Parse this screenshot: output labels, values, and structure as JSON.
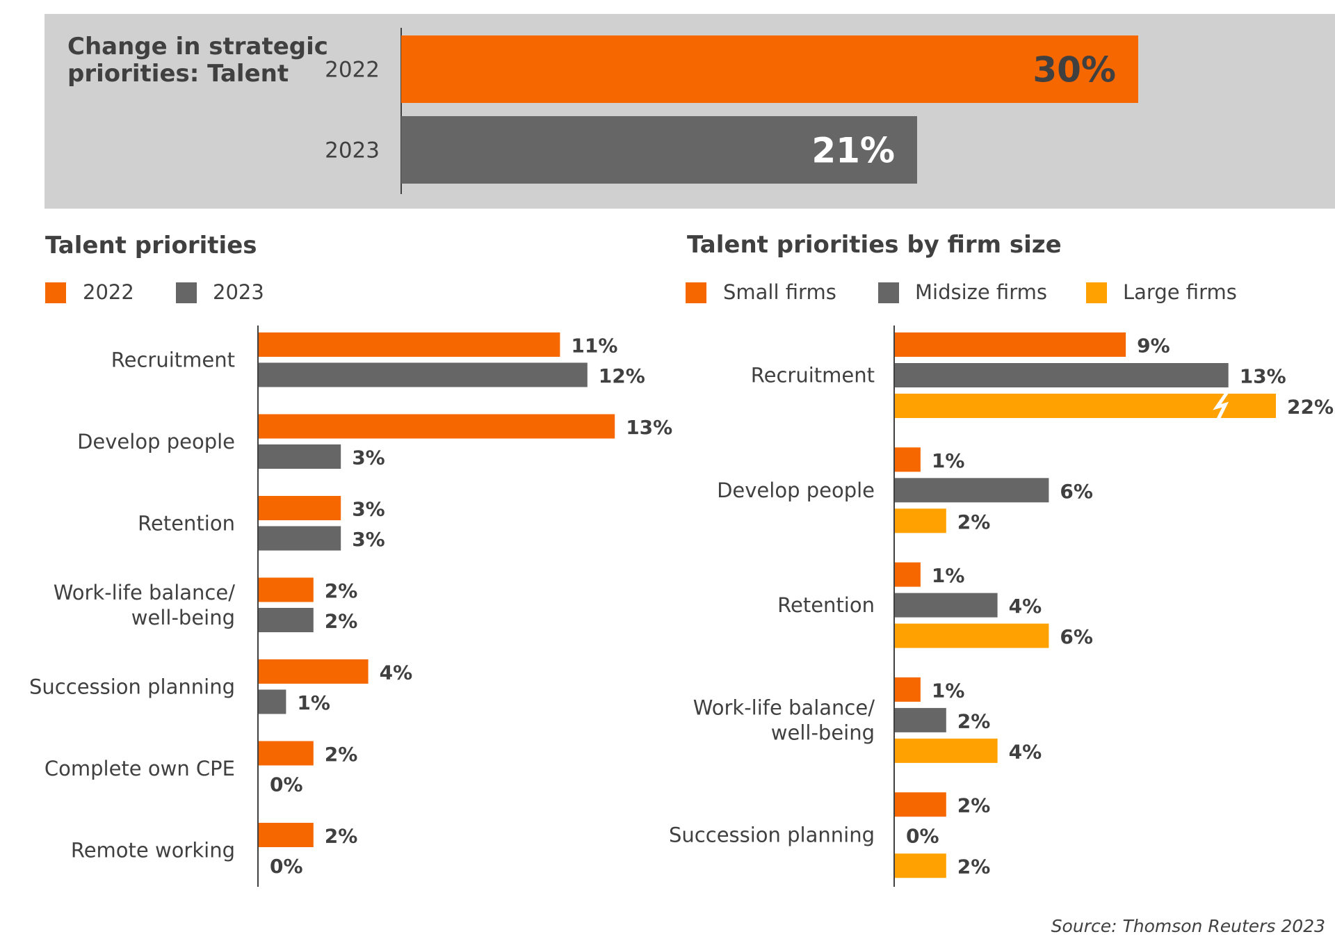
{
  "colors": {
    "orange": "#F76700",
    "gray": "#666666",
    "amber": "#FFA100",
    "panel": "#D0D0D0",
    "text": "#404040",
    "axis": "#404040"
  },
  "source": "Source: Thomson Reuters 2023",
  "chart_data": [
    {
      "type": "bar",
      "orientation": "horizontal",
      "title_lines": [
        "Change in strategic",
        "priorities: Talent"
      ],
      "categories": [
        "2022",
        "2023"
      ],
      "values": [
        30,
        21
      ],
      "value_labels": [
        "30%",
        "21%"
      ],
      "colors": [
        "#F76700",
        "#666666"
      ],
      "unit": "%",
      "xlim": [
        0,
        30
      ],
      "grid": false
    },
    {
      "type": "bar",
      "orientation": "horizontal",
      "title": "Talent priorities",
      "legend": [
        "2022",
        "2023"
      ],
      "legend_position": "top-left",
      "categories": [
        [
          "Recruitment"
        ],
        [
          "Develop people"
        ],
        [
          "Retention"
        ],
        [
          "Work-life balance/",
          "well-being"
        ],
        [
          "Succession planning"
        ],
        [
          "Complete own CPE"
        ],
        [
          "Remote working"
        ]
      ],
      "series": [
        {
          "name": "2022",
          "color": "#F76700",
          "values": [
            11,
            13,
            3,
            2,
            4,
            2,
            2
          ],
          "labels": [
            "11%",
            "13%",
            "3%",
            "2%",
            "4%",
            "2%",
            "2%"
          ]
        },
        {
          "name": "2023",
          "color": "#666666",
          "values": [
            12,
            3,
            3,
            2,
            1,
            0,
            0
          ],
          "labels": [
            "12%",
            "3%",
            "3%",
            "2%",
            "1%",
            "0%",
            "0%"
          ]
        }
      ],
      "unit": "%",
      "grid": false
    },
    {
      "type": "bar",
      "orientation": "horizontal",
      "title": "Talent priorities by firm size",
      "legend": [
        "Small firms",
        "Midsize firms",
        "Large firms"
      ],
      "legend_position": "top-left",
      "categories": [
        [
          "Recruitment"
        ],
        [
          "Develop people"
        ],
        [
          "Retention"
        ],
        [
          "Work-life balance/",
          "well-being"
        ],
        [
          "Succession planning"
        ]
      ],
      "series": [
        {
          "name": "Small firms",
          "color": "#F76700",
          "values": [
            9,
            1,
            1,
            1,
            2
          ],
          "labels": [
            "9%",
            "1%",
            "1%",
            "1%",
            "2%"
          ]
        },
        {
          "name": "Midsize firms",
          "color": "#666666",
          "values": [
            13,
            6,
            4,
            2,
            0
          ],
          "labels": [
            "13%",
            "6%",
            "4%",
            "2%",
            "0%"
          ]
        },
        {
          "name": "Large firms",
          "color": "#FFA100",
          "values": [
            22,
            2,
            6,
            4,
            2
          ],
          "labels": [
            "22%",
            "2%",
            "6%",
            "4%",
            "2%"
          ],
          "axis_break": [
            true,
            false,
            false,
            false,
            false
          ]
        }
      ],
      "unit": "%",
      "grid": false
    }
  ]
}
